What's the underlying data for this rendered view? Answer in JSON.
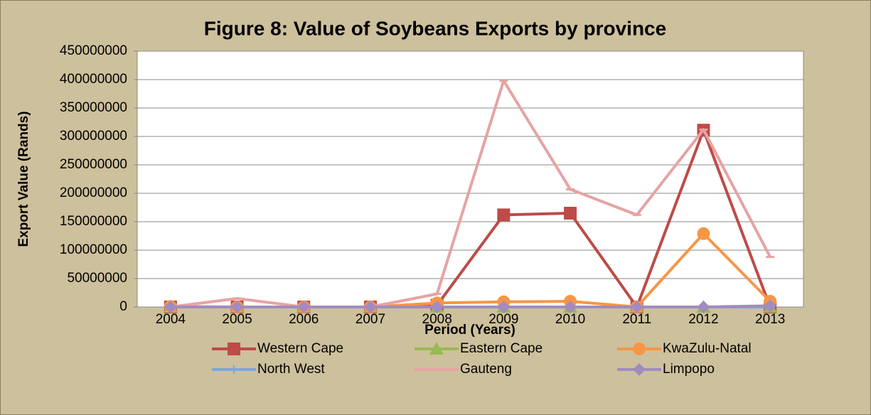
{
  "chart_data": {
    "type": "line",
    "title": "Figure 8: Value of Soybeans Exports by province",
    "x_label": "Period (Years)",
    "y_label": "Export Value (Rands)",
    "categories": [
      "2004",
      "2005",
      "2006",
      "2007",
      "2008",
      "2009",
      "2010",
      "2011",
      "2012",
      "2013"
    ],
    "series": [
      {
        "name": "Western Cape",
        "color": "#be4b48",
        "marker": "square",
        "values": [
          0,
          0,
          0,
          0,
          3000000,
          162000000,
          165000000,
          0,
          311000000,
          0
        ]
      },
      {
        "name": "Eastern Cape",
        "color": "#98b954",
        "marker": "triangle",
        "values": [
          0,
          0,
          0,
          0,
          0,
          0,
          0,
          0,
          0,
          0
        ]
      },
      {
        "name": "KwaZulu-Natal",
        "color": "#f79646",
        "marker": "circle",
        "values": [
          1000000,
          0,
          0,
          0,
          7000000,
          9000000,
          10000000,
          0,
          129000000,
          10000000
        ]
      },
      {
        "name": "North West",
        "color": "#7ea6d9",
        "marker": "plus",
        "values": [
          0,
          0,
          0,
          0,
          0,
          0,
          0,
          0,
          0,
          0
        ]
      },
      {
        "name": "Gauteng",
        "color": "#e6a3a3",
        "marker": "dash",
        "values": [
          0,
          15000000,
          0,
          0,
          23000000,
          398000000,
          207000000,
          162000000,
          312000000,
          88000000
        ]
      },
      {
        "name": "Limpopo",
        "color": "#a18bc1",
        "marker": "diamond",
        "values": [
          0,
          0,
          0,
          0,
          0,
          0,
          0,
          0,
          0,
          2000000
        ]
      }
    ],
    "ylim": [
      0,
      450000000
    ],
    "yticks": [
      0,
      50000000,
      100000000,
      150000000,
      200000000,
      250000000,
      300000000,
      350000000,
      400000000,
      450000000
    ],
    "grid": true,
    "legend": "bottom"
  }
}
